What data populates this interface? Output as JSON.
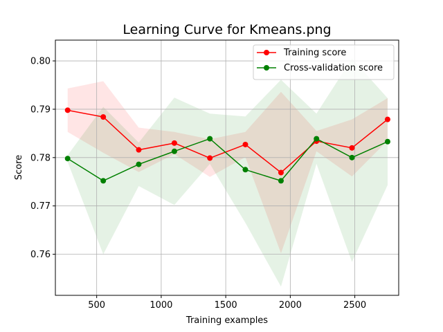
{
  "chart_data": {
    "type": "line",
    "title": "Learning Curve for Kmeans.png",
    "xlabel": "Training examples",
    "ylabel": "Score",
    "xlim": [
      180,
      2840
    ],
    "ylim": [
      0.7515,
      0.8043
    ],
    "xticks": [
      500,
      1000,
      1500,
      2000,
      2500
    ],
    "yticks": [
      0.76,
      0.77,
      0.78,
      0.79,
      0.8
    ],
    "ytick_labels": [
      "0.76",
      "0.77",
      "0.78",
      "0.79",
      "0.80"
    ],
    "grid": true,
    "legend_position": "upper right",
    "x": [
      275,
      551,
      826,
      1102,
      1377,
      1652,
      1928,
      2203,
      2478,
      2754
    ],
    "series": [
      {
        "name": "Training score",
        "color": "#ff0000",
        "fill_color": "#ff0000",
        "values": [
          0.7898,
          0.7884,
          0.7816,
          0.783,
          0.7799,
          0.7827,
          0.7769,
          0.7834,
          0.782,
          0.7879
        ],
        "upper": [
          0.7943,
          0.7958,
          0.7862,
          0.7853,
          0.7838,
          0.7853,
          0.7936,
          0.7855,
          0.7879,
          0.7923
        ],
        "lower": [
          0.7853,
          0.781,
          0.777,
          0.7807,
          0.776,
          0.7801,
          0.7602,
          0.7813,
          0.7761,
          0.7835
        ]
      },
      {
        "name": "Cross-validation score",
        "color": "#008000",
        "fill_color": "#008000",
        "values": [
          0.7798,
          0.7752,
          0.7786,
          0.7813,
          0.7839,
          0.7775,
          0.7752,
          0.7839,
          0.78,
          0.7833
        ],
        "upper": [
          0.7805,
          0.7905,
          0.7831,
          0.7924,
          0.7891,
          0.7885,
          0.7961,
          0.7891,
          0.8005,
          0.7923
        ],
        "lower": [
          0.7791,
          0.76,
          0.7741,
          0.7702,
          0.7787,
          0.7665,
          0.7533,
          0.7787,
          0.7584,
          0.7743
        ]
      }
    ]
  }
}
